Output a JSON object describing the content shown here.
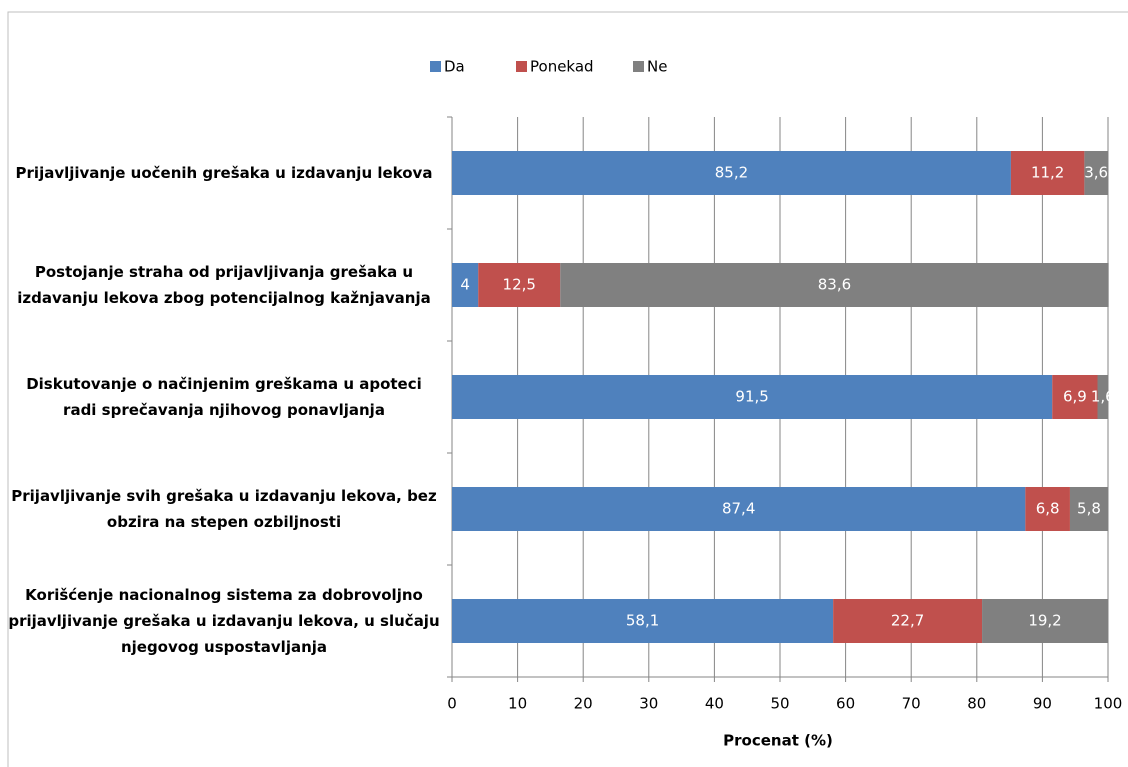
{
  "chart_data": {
    "type": "stacked-bar-horizontal",
    "categories": [
      "Prijavljivanje uočenih grešaka u izdavanju lekova",
      "Postojanje straha od prijavljivanja grešaka u izdavanju lekova zbog potencijalnog kažnjavanja",
      "Diskutovanje o načinjenim greškama u apoteci radi sprečavanja njihovog ponavljanja",
      "Prijavljivanje svih grešaka u izdavanju lekova, bez obzira na stepen ozbiljnosti",
      "Korišćenje nacionalnog sistema za dobrovoljno prijavljivanje grešaka u izdavanju lekova, u slučaju njegovog uspostavljanja"
    ],
    "series": [
      {
        "name": "Da",
        "color": "#4f81bd",
        "values": [
          85.2,
          4,
          91.5,
          87.4,
          58.1
        ],
        "value_labels": [
          "85,2",
          "4",
          "91,5",
          "87,4",
          "58,1"
        ]
      },
      {
        "name": "Ponekad",
        "color": "#c0504d",
        "values": [
          11.2,
          12.5,
          6.9,
          6.8,
          22.7
        ],
        "value_labels": [
          "11,2",
          "12,5",
          "6,9",
          "6,8",
          "22,7"
        ]
      },
      {
        "name": "Ne",
        "color": "#808080",
        "values": [
          3.6,
          83.6,
          1.6,
          5.8,
          19.2
        ],
        "value_labels": [
          "3,6",
          "83,6",
          "1,6",
          "5,8",
          "19,2"
        ]
      }
    ],
    "x_label": "Procenat (%)",
    "xlim": [
      0,
      100
    ],
    "xticks": [
      0,
      10,
      20,
      30,
      40,
      50,
      60,
      70,
      80,
      90,
      100
    ],
    "grid": true,
    "legend": "top"
  }
}
